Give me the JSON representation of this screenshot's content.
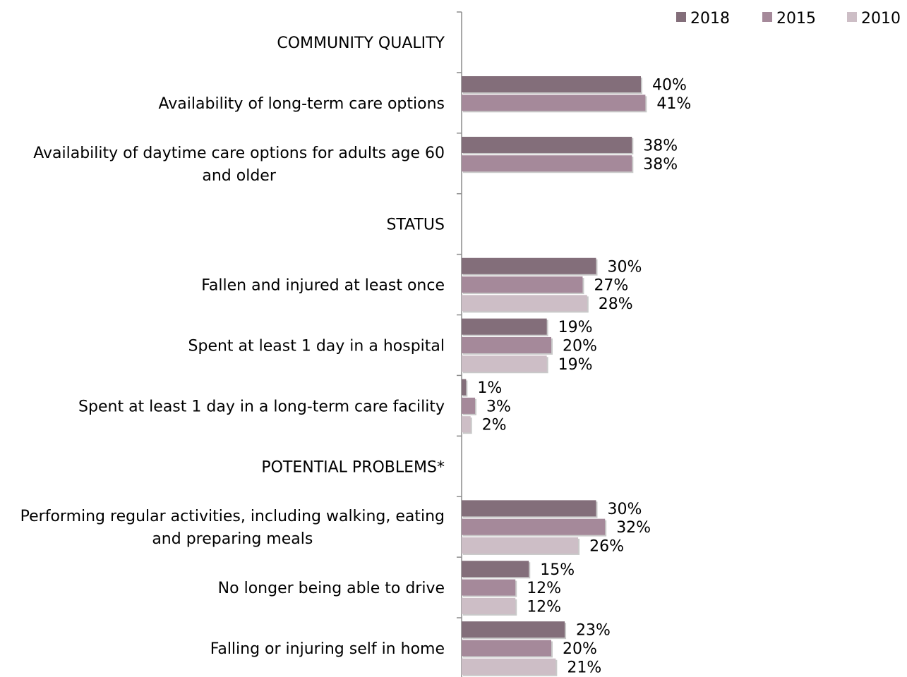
{
  "chart_data": {
    "type": "bar",
    "orientation": "horizontal",
    "legend_position": "top-right",
    "grid": false,
    "series": [
      {
        "name": "2018",
        "color": "#836E7A"
      },
      {
        "name": "2015",
        "color": "#A5899A"
      },
      {
        "name": "2010",
        "color": "#CDBEC6"
      }
    ],
    "xlim": [
      0,
      100
    ],
    "rows": [
      {
        "label": "COMMUNITY QUALITY",
        "kind": "section"
      },
      {
        "label": "Availability of long-term care options",
        "kind": "item",
        "values": [
          40,
          41,
          null
        ],
        "value_labels": [
          "40%",
          "41%",
          null
        ]
      },
      {
        "label": "Availability of daytime care options for adults age 60 and older",
        "kind": "item",
        "values": [
          38,
          38,
          null
        ],
        "value_labels": [
          "38%",
          "38%",
          null
        ]
      },
      {
        "label": "STATUS",
        "kind": "section"
      },
      {
        "label": "Fallen and injured at least once",
        "kind": "item",
        "values": [
          30,
          27,
          28
        ],
        "value_labels": [
          "30%",
          "27%",
          "28%"
        ]
      },
      {
        "label": "Spent at least 1 day in a hospital",
        "kind": "item",
        "values": [
          19,
          20,
          19
        ],
        "value_labels": [
          "19%",
          "20%",
          "19%"
        ]
      },
      {
        "label": "Spent at least 1 day in a long-term care facility",
        "kind": "item",
        "values": [
          1,
          3,
          2
        ],
        "value_labels": [
          "1%",
          "3%",
          "2%"
        ]
      },
      {
        "label": "POTENTIAL PROBLEMS*",
        "kind": "section"
      },
      {
        "label": "Performing regular activities, including walking, eating and preparing meals",
        "kind": "item",
        "values": [
          30,
          32,
          26
        ],
        "value_labels": [
          "30%",
          "32%",
          "26%"
        ]
      },
      {
        "label": "No longer being able to drive",
        "kind": "item",
        "values": [
          15,
          12,
          12
        ],
        "value_labels": [
          "15%",
          "12%",
          "12%"
        ]
      },
      {
        "label": "Falling or injuring self in home",
        "kind": "item",
        "values": [
          23,
          20,
          21
        ],
        "value_labels": [
          "23%",
          "20%",
          "21%"
        ]
      }
    ]
  }
}
